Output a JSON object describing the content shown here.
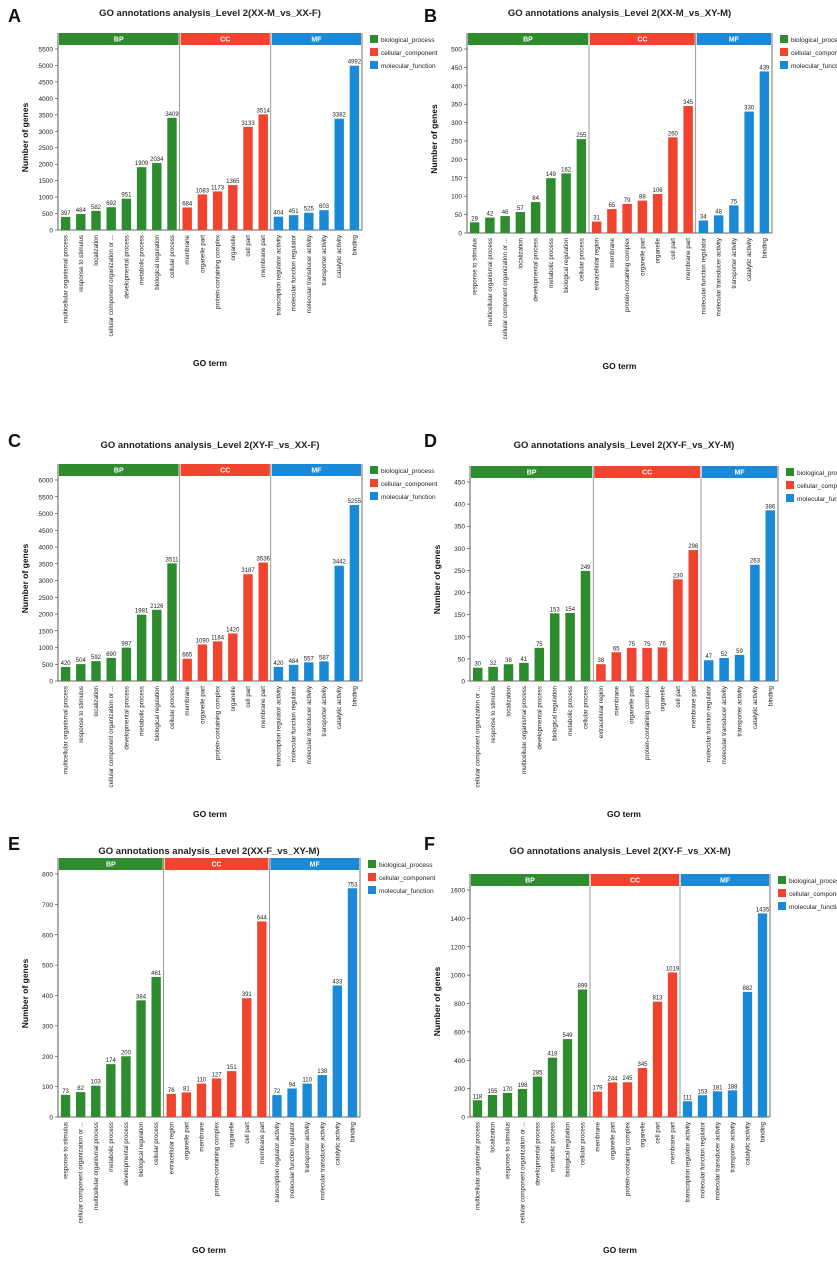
{
  "legend": {
    "bp": "biological_process",
    "cc": "cellular_component",
    "mf": "molecular_function"
  },
  "axes": {
    "ylabel": "Number of genes",
    "xlabel": "GO term"
  },
  "categories": {
    "bp": "BP",
    "cc": "CC",
    "mf": "MF"
  },
  "colors": {
    "bp": "#2E8B2E",
    "cc": "#F0442F",
    "mf": "#1A8AD8"
  },
  "chart_data": [
    {
      "panel": "A",
      "type": "bar",
      "title": "GO annotations analysis_Level 2(XX-M_vs_XX-F)",
      "ylim": [
        0,
        5500
      ],
      "ystep": 500,
      "xlabel": "GO term",
      "ylabel": "Number of genes",
      "groups": [
        {
          "name": "BP",
          "terms": [
            "multicellular organismal process",
            "response to stimulus",
            "localization",
            "cellular component organization or ...",
            "developmental process",
            "metabolic process",
            "biological regulation",
            "cellular process"
          ],
          "values": [
            397,
            484,
            582,
            692,
            951,
            1909,
            2034,
            3409
          ]
        },
        {
          "name": "CC",
          "terms": [
            "membrane",
            "organelle part",
            "protein-containing complex",
            "organelle",
            "cell part",
            "membrane part"
          ],
          "values": [
            684,
            1083,
            1173,
            1365,
            3133,
            3514
          ]
        },
        {
          "name": "MF",
          "terms": [
            "transcription regulator activity",
            "molecular function regulator",
            "molecular transducer activity",
            "transporter activity",
            "catalytic activity",
            "binding"
          ],
          "values": [
            404,
            451,
            525,
            603,
            3382,
            4992
          ]
        }
      ]
    },
    {
      "panel": "B",
      "type": "bar",
      "title": "GO annotations analysis_Level 2(XX-M_vs_XY-M)",
      "ylim": [
        0,
        500
      ],
      "ystep": 50,
      "xlabel": "GO term",
      "ylabel": "Number of genes",
      "groups": [
        {
          "name": "BP",
          "terms": [
            "response to stimulus",
            "multicellular organismal process",
            "cellular component organization or ...",
            "localization",
            "developmental process",
            "metabolic process",
            "biological regulation",
            "cellular process"
          ],
          "values": [
            29,
            42,
            46,
            57,
            84,
            149,
            162,
            255
          ]
        },
        {
          "name": "CC",
          "terms": [
            "extracellular region",
            "membrane",
            "protein-containing complex",
            "organelle part",
            "organelle",
            "cell part",
            "membrane part"
          ],
          "values": [
            31,
            65,
            79,
            88,
            106,
            260,
            345
          ]
        },
        {
          "name": "MF",
          "terms": [
            "molecular function regulator",
            "molecular transducer activity",
            "transporter activity",
            "catalytic activity",
            "binding"
          ],
          "values": [
            34,
            48,
            75,
            330,
            439
          ]
        }
      ]
    },
    {
      "panel": "C",
      "type": "bar",
      "title": "GO annotations analysis_Level 2(XY-F_vs_XX-F)",
      "ylim": [
        0,
        6000
      ],
      "ystep": 500,
      "xlabel": "GO term",
      "ylabel": "Number of genes",
      "groups": [
        {
          "name": "BP",
          "terms": [
            "multicellular organismal process",
            "response to stimulus",
            "localization",
            "cellular component organization or ...",
            "developmental process",
            "metabolic process",
            "biological regulation",
            "cellular process"
          ],
          "values": [
            420,
            504,
            592,
            690,
            997,
            1981,
            2126,
            3511
          ]
        },
        {
          "name": "CC",
          "terms": [
            "membrane",
            "organelle part",
            "protein-containing complex",
            "organelle",
            "cell part",
            "membrane part"
          ],
          "values": [
            665,
            1090,
            1184,
            1420,
            3187,
            3536
          ]
        },
        {
          "name": "MF",
          "terms": [
            "transcription regulator activity",
            "molecular function regulator",
            "molecular transducer activity",
            "transporter activity",
            "catalytic activity",
            "binding"
          ],
          "values": [
            420,
            484,
            557,
            587,
            3442,
            5255
          ]
        }
      ]
    },
    {
      "panel": "D",
      "type": "bar",
      "title": "GO annotations analysis_Level 2(XY-F_vs_XY-M)",
      "ylim": [
        0,
        450
      ],
      "ystep": 50,
      "xlabel": "GO term",
      "ylabel": "Number of genes",
      "groups": [
        {
          "name": "BP",
          "terms": [
            "cellular component organization or ...",
            "response to stimulus",
            "localization",
            "multicellular organismal process",
            "developmental process",
            "biological regulation",
            "metabolic process",
            "cellular process"
          ],
          "values": [
            30,
            32,
            38,
            41,
            75,
            153,
            154,
            249
          ]
        },
        {
          "name": "CC",
          "terms": [
            "extracellular region",
            "membrane",
            "organelle part",
            "protein-containing complex",
            "organelle",
            "cell part",
            "membrane part"
          ],
          "values": [
            38,
            65,
            75,
            75,
            76,
            230,
            296
          ]
        },
        {
          "name": "MF",
          "terms": [
            "molecular function regulator",
            "molecular transducer activity",
            "transporter activity",
            "catalytic activity",
            "binding"
          ],
          "values": [
            47,
            52,
            59,
            263,
            386
          ]
        }
      ]
    },
    {
      "panel": "E",
      "type": "bar",
      "title": "GO annotations analysis_Level 2(XX-F_vs_XY-M)",
      "ylim": [
        0,
        800
      ],
      "ystep": 100,
      "xlabel": "GO term",
      "ylabel": "Number of genes",
      "groups": [
        {
          "name": "BP",
          "terms": [
            "response to stimulus",
            "cellular component organization or ...",
            "multicellular organismal process",
            "metabolic process",
            "developmental process",
            "biological regulation",
            "cellular process"
          ],
          "values": [
            73,
            82,
            103,
            174,
            200,
            384,
            461
          ]
        },
        {
          "name": "CC",
          "terms": [
            "extracellular region",
            "organelle part",
            "membrane",
            "protein-containing complex",
            "organelle",
            "cell part",
            "membrane part"
          ],
          "values": [
            76,
            81,
            110,
            127,
            151,
            391,
            644
          ]
        },
        {
          "name": "MF",
          "terms": [
            "transcription regulator activity",
            "molecular function regulator",
            "transporter activity",
            "molecular transducer activity",
            "catalytic activity",
            "binding"
          ],
          "values": [
            72,
            94,
            110,
            138,
            433,
            753
          ]
        }
      ]
    },
    {
      "panel": "F",
      "type": "bar",
      "title": "GO annotations analysis_Level 2(XY-F_vs_XX-M)",
      "ylim": [
        0,
        1600
      ],
      "ystep": 200,
      "xlabel": "GO term",
      "ylabel": "Number of genes",
      "groups": [
        {
          "name": "BP",
          "terms": [
            "multicellular organismal process",
            "localization",
            "response to stimulus",
            "cellular component organization or ...",
            "developmental process",
            "metabolic process",
            "biological regulation",
            "cellular process"
          ],
          "values": [
            118,
            155,
            170,
            198,
            285,
            418,
            549,
            899
          ]
        },
        {
          "name": "CC",
          "terms": [
            "membrane",
            "organelle part",
            "protein-containing complex",
            "organelle",
            "cell part",
            "membrane part"
          ],
          "values": [
            179,
            244,
            245,
            345,
            813,
            1019
          ]
        },
        {
          "name": "MF",
          "terms": [
            "transcription regulator activity",
            "molecular function regulator",
            "molecular transducer activity",
            "transporter activity",
            "catalytic activity",
            "binding"
          ],
          "values": [
            111,
            153,
            181,
            188,
            882,
            1435
          ]
        }
      ]
    }
  ]
}
